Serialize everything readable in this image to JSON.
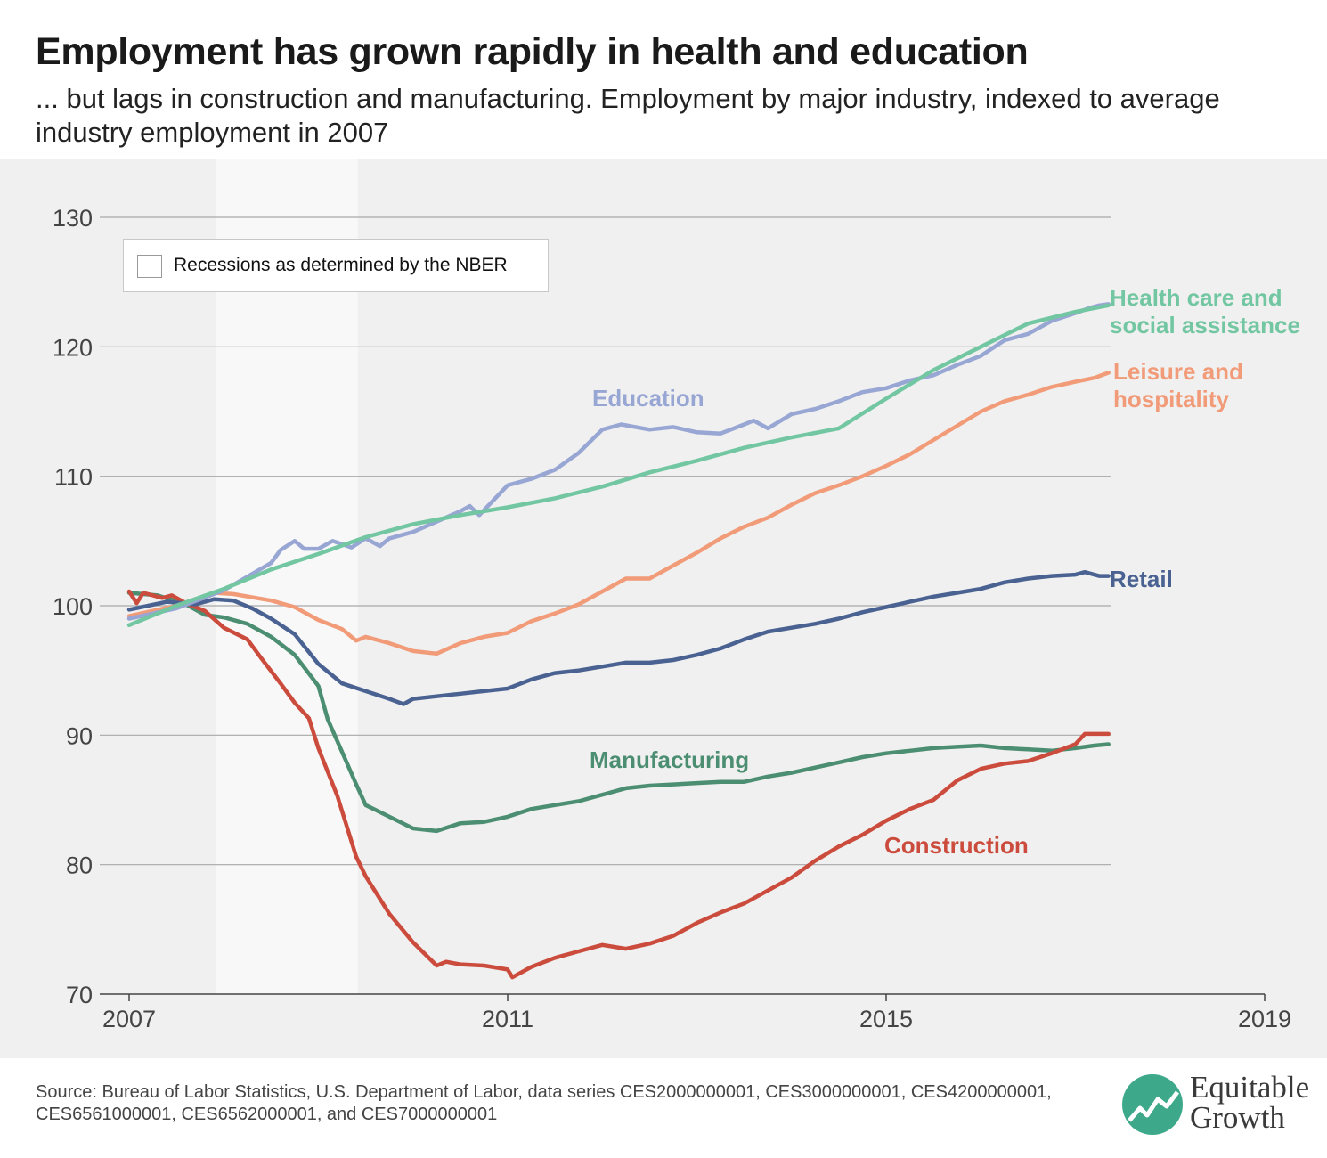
{
  "header": {
    "title": "Employment has grown rapidly in health and education",
    "subtitle": "... but lags in construction and manufacturing. Employment by major industry, indexed to average industry employment in 2007"
  },
  "legend": {
    "recession_label": "Recessions as determined by the NBER"
  },
  "footer": {
    "source": "Source: Bureau of Labor Statistics, U.S. Department of Labor, data series CES2000000001, CES3000000001, CES4200000001, CES6561000001, CES6562000001, and CES7000000001",
    "logo_text_line1": "Equitable",
    "logo_text_line2": "Growth"
  },
  "colors": {
    "background": "#f0f0f0",
    "recession_band": "#f8f8f8",
    "education": "#98a6d4",
    "health": "#72c7a2",
    "leisure": "#f19b79",
    "retail": "#4a6292",
    "manufacturing": "#4c8e72",
    "construction": "#cb4c3d",
    "logo_green": "#3ea98a"
  },
  "chart_data": {
    "type": "line",
    "title": "Employment has grown rapidly in health and education",
    "ylim": [
      70,
      130
    ],
    "yticks": [
      "70",
      "80",
      "90",
      "100",
      "110",
      "120",
      "130"
    ],
    "xlim": [
      2007,
      2019
    ],
    "xticks": [
      "2007",
      "2011",
      "2015",
      "2019"
    ],
    "grid": true,
    "recession": {
      "start": 2007.917,
      "end": 2009.417
    },
    "series": [
      {
        "name": "Health care and social assistance",
        "label_lines": [
          "Health care and",
          "social assistance"
        ],
        "points": [
          [
            2007.0,
            98.5
          ],
          [
            2007.5,
            100.0
          ],
          [
            2008.0,
            101.3
          ],
          [
            2008.5,
            102.8
          ],
          [
            2009.0,
            104.0
          ],
          [
            2009.5,
            105.3
          ],
          [
            2010.0,
            106.3
          ],
          [
            2010.5,
            107.0
          ],
          [
            2011.0,
            107.6
          ],
          [
            2011.5,
            108.3
          ],
          [
            2012.0,
            109.2
          ],
          [
            2012.5,
            110.3
          ],
          [
            2013.0,
            111.2
          ],
          [
            2013.5,
            112.2
          ],
          [
            2014.0,
            113.0
          ],
          [
            2014.5,
            113.7
          ],
          [
            2015.0,
            116.0
          ],
          [
            2015.5,
            118.2
          ],
          [
            2016.0,
            120.0
          ],
          [
            2016.5,
            121.8
          ],
          [
            2017.0,
            122.7
          ],
          [
            2017.35,
            123.2
          ]
        ]
      },
      {
        "name": "Education",
        "label_lines": [
          "Education"
        ],
        "points": [
          [
            2007.0,
            99.0
          ],
          [
            2007.5,
            99.8
          ],
          [
            2008.0,
            101.2
          ],
          [
            2008.5,
            103.3
          ],
          [
            2008.6,
            104.3
          ],
          [
            2008.75,
            105.0
          ],
          [
            2008.85,
            104.4
          ],
          [
            2009.0,
            104.4
          ],
          [
            2009.15,
            105.0
          ],
          [
            2009.35,
            104.5
          ],
          [
            2009.5,
            105.2
          ],
          [
            2009.65,
            104.6
          ],
          [
            2009.75,
            105.2
          ],
          [
            2010.0,
            105.7
          ],
          [
            2010.5,
            107.3
          ],
          [
            2010.6,
            107.7
          ],
          [
            2010.7,
            107.0
          ],
          [
            2011.0,
            109.3
          ],
          [
            2011.25,
            109.8
          ],
          [
            2011.5,
            110.5
          ],
          [
            2011.75,
            111.8
          ],
          [
            2012.0,
            113.6
          ],
          [
            2012.2,
            114.0
          ],
          [
            2012.5,
            113.6
          ],
          [
            2012.75,
            113.8
          ],
          [
            2013.0,
            113.4
          ],
          [
            2013.25,
            113.3
          ],
          [
            2013.5,
            114.0
          ],
          [
            2013.6,
            114.3
          ],
          [
            2013.75,
            113.7
          ],
          [
            2014.0,
            114.8
          ],
          [
            2014.25,
            115.2
          ],
          [
            2014.5,
            115.8
          ],
          [
            2014.75,
            116.5
          ],
          [
            2015.0,
            116.8
          ],
          [
            2015.25,
            117.4
          ],
          [
            2015.5,
            117.8
          ],
          [
            2015.75,
            118.6
          ],
          [
            2016.0,
            119.3
          ],
          [
            2016.25,
            120.5
          ],
          [
            2016.5,
            121.0
          ],
          [
            2016.75,
            122.0
          ],
          [
            2017.0,
            122.6
          ],
          [
            2017.15,
            123.0
          ],
          [
            2017.25,
            123.2
          ],
          [
            2017.35,
            123.3
          ]
        ]
      },
      {
        "name": "Leisure and hospitality",
        "label_lines": [
          "Leisure and",
          "hospitality"
        ],
        "points": [
          [
            2007.0,
            99.2
          ],
          [
            2007.5,
            100.0
          ],
          [
            2007.9,
            101.0
          ],
          [
            2008.1,
            100.9
          ],
          [
            2008.5,
            100.4
          ],
          [
            2008.75,
            99.9
          ],
          [
            2009.0,
            98.9
          ],
          [
            2009.25,
            98.2
          ],
          [
            2009.4,
            97.3
          ],
          [
            2009.5,
            97.6
          ],
          [
            2009.75,
            97.1
          ],
          [
            2010.0,
            96.5
          ],
          [
            2010.25,
            96.3
          ],
          [
            2010.5,
            97.1
          ],
          [
            2010.75,
            97.6
          ],
          [
            2011.0,
            97.9
          ],
          [
            2011.25,
            98.8
          ],
          [
            2011.5,
            99.4
          ],
          [
            2011.75,
            100.1
          ],
          [
            2012.0,
            101.1
          ],
          [
            2012.25,
            102.1
          ],
          [
            2012.5,
            102.1
          ],
          [
            2012.75,
            103.1
          ],
          [
            2013.0,
            104.1
          ],
          [
            2013.25,
            105.2
          ],
          [
            2013.5,
            106.1
          ],
          [
            2013.75,
            106.8
          ],
          [
            2014.0,
            107.8
          ],
          [
            2014.25,
            108.7
          ],
          [
            2014.5,
            109.3
          ],
          [
            2014.75,
            110.0
          ],
          [
            2015.0,
            110.8
          ],
          [
            2015.25,
            111.7
          ],
          [
            2015.5,
            112.8
          ],
          [
            2015.75,
            113.9
          ],
          [
            2016.0,
            115.0
          ],
          [
            2016.25,
            115.8
          ],
          [
            2016.5,
            116.3
          ],
          [
            2016.75,
            116.9
          ],
          [
            2017.0,
            117.3
          ],
          [
            2017.2,
            117.6
          ],
          [
            2017.35,
            118.0
          ]
        ]
      },
      {
        "name": "Retail",
        "label_lines": [
          "Retail"
        ],
        "points": [
          [
            2007.0,
            99.7
          ],
          [
            2007.4,
            100.3
          ],
          [
            2007.7,
            100.1
          ],
          [
            2007.9,
            100.5
          ],
          [
            2008.1,
            100.4
          ],
          [
            2008.3,
            99.8
          ],
          [
            2008.5,
            99.0
          ],
          [
            2008.75,
            97.8
          ],
          [
            2009.0,
            95.5
          ],
          [
            2009.25,
            94.0
          ],
          [
            2009.5,
            93.4
          ],
          [
            2009.75,
            92.8
          ],
          [
            2009.9,
            92.4
          ],
          [
            2010.0,
            92.8
          ],
          [
            2010.25,
            93.0
          ],
          [
            2010.5,
            93.2
          ],
          [
            2010.75,
            93.4
          ],
          [
            2011.0,
            93.6
          ],
          [
            2011.25,
            94.3
          ],
          [
            2011.5,
            94.8
          ],
          [
            2011.75,
            95.0
          ],
          [
            2012.0,
            95.3
          ],
          [
            2012.25,
            95.6
          ],
          [
            2012.5,
            95.6
          ],
          [
            2012.75,
            95.8
          ],
          [
            2013.0,
            96.2
          ],
          [
            2013.25,
            96.7
          ],
          [
            2013.5,
            97.4
          ],
          [
            2013.75,
            98.0
          ],
          [
            2014.0,
            98.3
          ],
          [
            2014.25,
            98.6
          ],
          [
            2014.5,
            99.0
          ],
          [
            2014.75,
            99.5
          ],
          [
            2015.0,
            99.9
          ],
          [
            2015.25,
            100.3
          ],
          [
            2015.5,
            100.7
          ],
          [
            2015.75,
            101.0
          ],
          [
            2016.0,
            101.3
          ],
          [
            2016.25,
            101.8
          ],
          [
            2016.5,
            102.1
          ],
          [
            2016.75,
            102.3
          ],
          [
            2017.0,
            102.4
          ],
          [
            2017.1,
            102.6
          ],
          [
            2017.25,
            102.3
          ],
          [
            2017.35,
            102.3
          ]
        ]
      },
      {
        "name": "Manufacturing",
        "label_lines": [
          "Manufacturing"
        ],
        "points": [
          [
            2007.0,
            101.0
          ],
          [
            2007.3,
            100.8
          ],
          [
            2007.6,
            100.1
          ],
          [
            2007.8,
            99.3
          ],
          [
            2008.0,
            99.1
          ],
          [
            2008.25,
            98.6
          ],
          [
            2008.5,
            97.6
          ],
          [
            2008.75,
            96.2
          ],
          [
            2009.0,
            93.8
          ],
          [
            2009.1,
            91.2
          ],
          [
            2009.25,
            88.7
          ],
          [
            2009.4,
            86.2
          ],
          [
            2009.5,
            84.6
          ],
          [
            2009.75,
            83.7
          ],
          [
            2010.0,
            82.8
          ],
          [
            2010.25,
            82.6
          ],
          [
            2010.5,
            83.2
          ],
          [
            2010.75,
            83.3
          ],
          [
            2011.0,
            83.7
          ],
          [
            2011.25,
            84.3
          ],
          [
            2011.5,
            84.6
          ],
          [
            2011.75,
            84.9
          ],
          [
            2012.0,
            85.4
          ],
          [
            2012.25,
            85.9
          ],
          [
            2012.5,
            86.1
          ],
          [
            2012.75,
            86.2
          ],
          [
            2013.0,
            86.3
          ],
          [
            2013.25,
            86.4
          ],
          [
            2013.5,
            86.4
          ],
          [
            2013.75,
            86.8
          ],
          [
            2014.0,
            87.1
          ],
          [
            2014.25,
            87.5
          ],
          [
            2014.5,
            87.9
          ],
          [
            2014.75,
            88.3
          ],
          [
            2015.0,
            88.6
          ],
          [
            2015.25,
            88.8
          ],
          [
            2015.5,
            89.0
          ],
          [
            2015.75,
            89.1
          ],
          [
            2016.0,
            89.2
          ],
          [
            2016.25,
            89.0
          ],
          [
            2016.5,
            88.9
          ],
          [
            2016.75,
            88.8
          ],
          [
            2017.0,
            89.0
          ],
          [
            2017.2,
            89.2
          ],
          [
            2017.35,
            89.3
          ]
        ]
      },
      {
        "name": "Construction",
        "label_lines": [
          "Construction"
        ],
        "points": [
          [
            2007.0,
            101.1
          ],
          [
            2007.08,
            100.2
          ],
          [
            2007.15,
            101.0
          ],
          [
            2007.35,
            100.6
          ],
          [
            2007.45,
            100.8
          ],
          [
            2007.6,
            100.2
          ],
          [
            2007.8,
            99.6
          ],
          [
            2008.0,
            98.3
          ],
          [
            2008.25,
            97.4
          ],
          [
            2008.4,
            95.9
          ],
          [
            2008.6,
            94.0
          ],
          [
            2008.75,
            92.5
          ],
          [
            2008.9,
            91.3
          ],
          [
            2009.0,
            89.0
          ],
          [
            2009.2,
            85.3
          ],
          [
            2009.4,
            80.6
          ],
          [
            2009.5,
            79.1
          ],
          [
            2009.75,
            76.2
          ],
          [
            2010.0,
            74.0
          ],
          [
            2010.25,
            72.2
          ],
          [
            2010.35,
            72.5
          ],
          [
            2010.5,
            72.3
          ],
          [
            2010.75,
            72.2
          ],
          [
            2011.0,
            71.9
          ],
          [
            2011.05,
            71.3
          ],
          [
            2011.25,
            72.1
          ],
          [
            2011.5,
            72.8
          ],
          [
            2011.75,
            73.3
          ],
          [
            2012.0,
            73.8
          ],
          [
            2012.25,
            73.5
          ],
          [
            2012.5,
            73.9
          ],
          [
            2012.75,
            74.5
          ],
          [
            2013.0,
            75.5
          ],
          [
            2013.25,
            76.3
          ],
          [
            2013.5,
            77.0
          ],
          [
            2013.75,
            78.0
          ],
          [
            2014.0,
            79.0
          ],
          [
            2014.25,
            80.3
          ],
          [
            2014.5,
            81.4
          ],
          [
            2014.75,
            82.3
          ],
          [
            2015.0,
            83.4
          ],
          [
            2015.25,
            84.3
          ],
          [
            2015.5,
            85.0
          ],
          [
            2015.75,
            86.5
          ],
          [
            2016.0,
            87.4
          ],
          [
            2016.25,
            87.8
          ],
          [
            2016.5,
            88.0
          ],
          [
            2016.75,
            88.6
          ],
          [
            2017.0,
            89.3
          ],
          [
            2017.1,
            90.1
          ],
          [
            2017.35,
            90.1
          ]
        ]
      }
    ]
  }
}
